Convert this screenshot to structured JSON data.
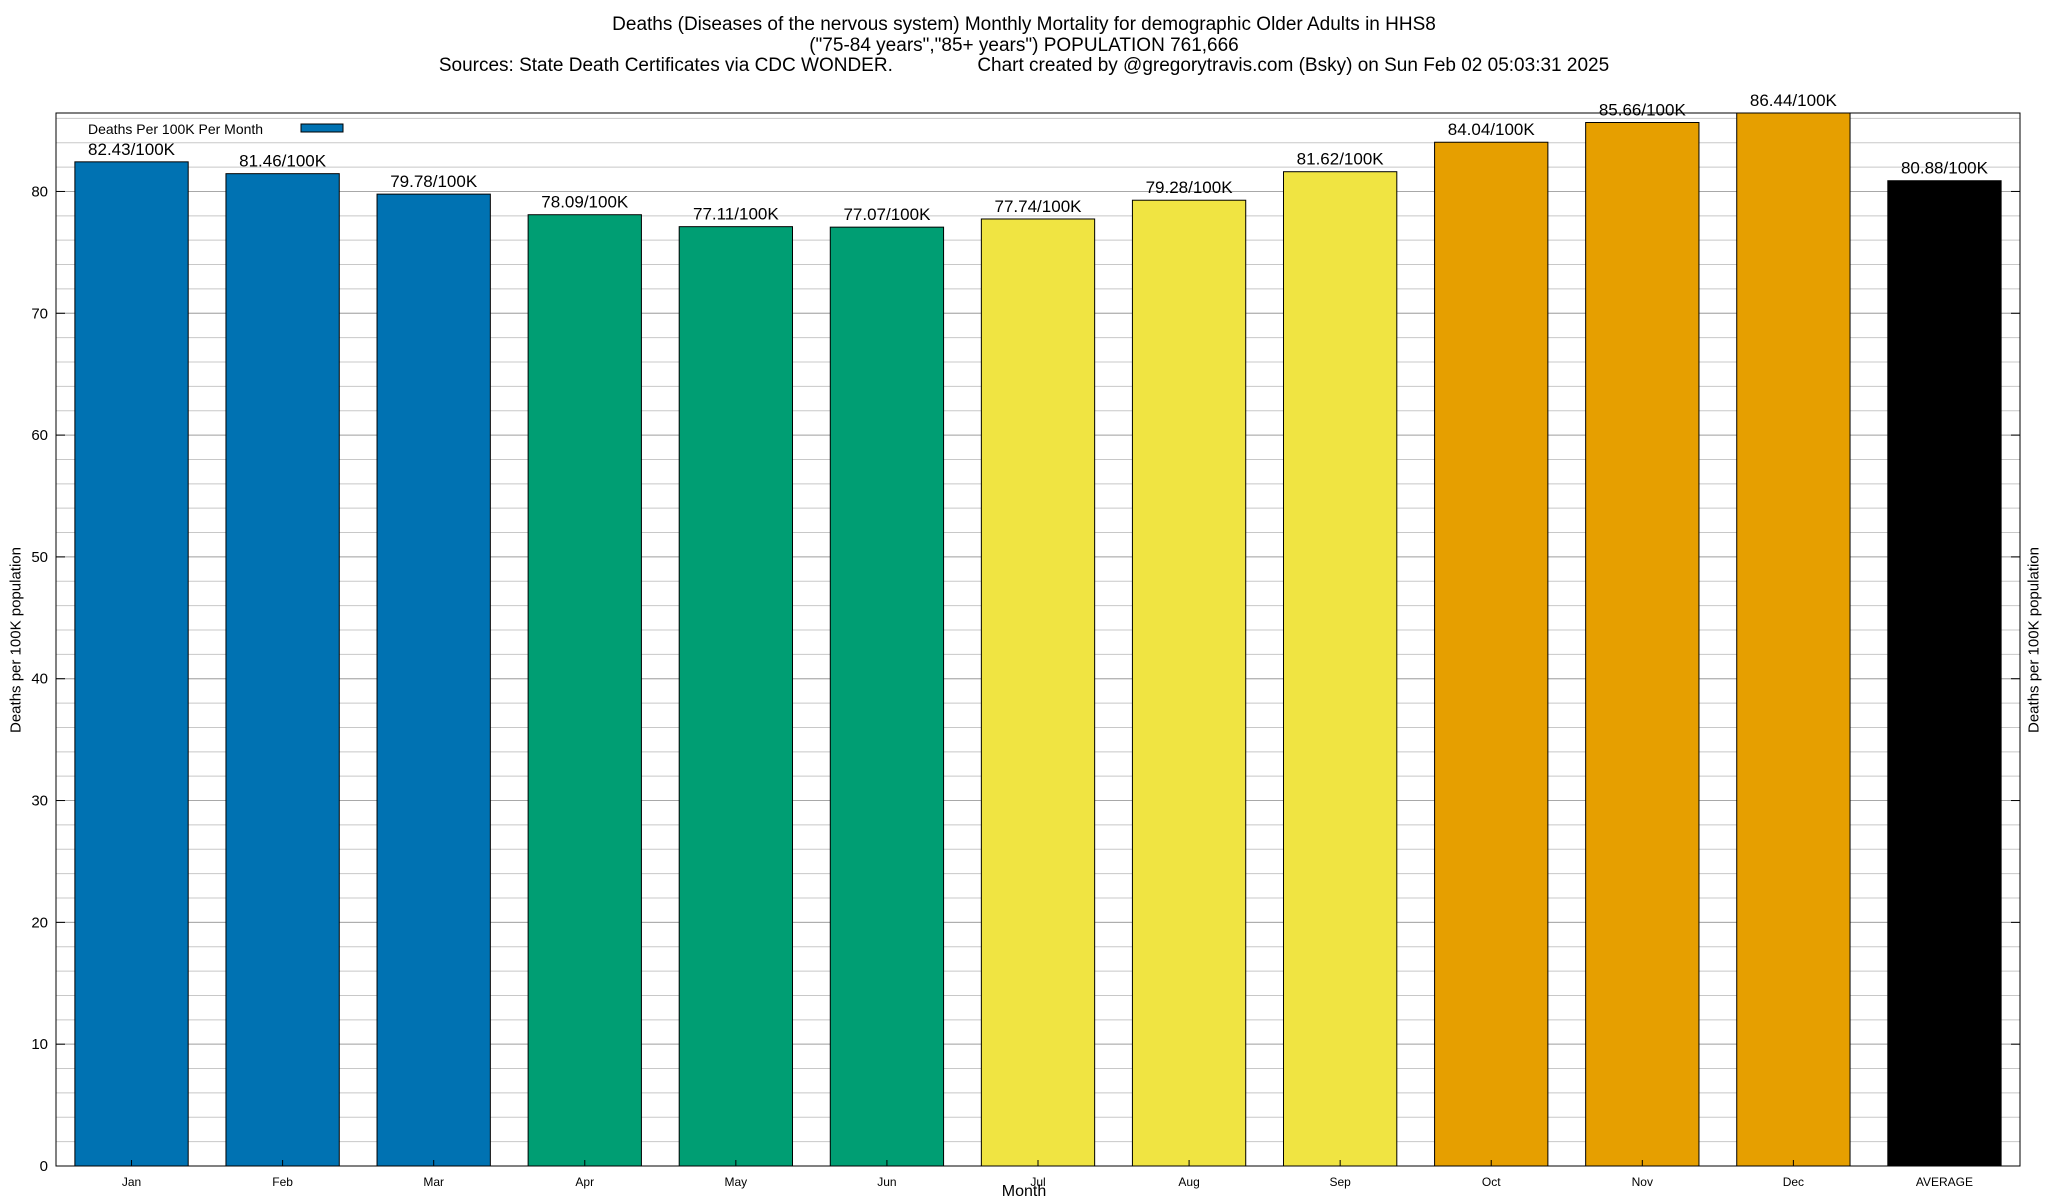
{
  "header": {
    "title_line1": "Deaths (Diseases of the nervous system) Monthly Mortality for demographic Older Adults in HHS8",
    "title_line2": "(\"75-84 years\",\"85+ years\") POPULATION 761,666",
    "title_line3": "Sources: State Death Certificates via CDC WONDER.                Chart created by @gregorytravis.com (Bsky) on Sun Feb 02 05:03:31 2025"
  },
  "legend": {
    "label": "Deaths Per 100K Per Month",
    "color": "#0072b2"
  },
  "chart_data": {
    "type": "bar",
    "categories": [
      "Jan",
      "Feb",
      "Mar",
      "Apr",
      "May",
      "Jun",
      "Jul",
      "Aug",
      "Sep",
      "Oct",
      "Nov",
      "Dec",
      "AVERAGE"
    ],
    "values": [
      82.43,
      81.46,
      79.78,
      78.09,
      77.11,
      77.07,
      77.74,
      79.28,
      81.62,
      84.04,
      85.66,
      86.44,
      80.88
    ],
    "data_labels": [
      "82.43/100K",
      "81.46/100K",
      "79.78/100K",
      "78.09/100K",
      "77.11/100K",
      "77.07/100K",
      "77.74/100K",
      "79.28/100K",
      "81.62/100K",
      "84.04/100K",
      "85.66/100K",
      "86.44/100K",
      "80.88/100K"
    ],
    "colors": [
      "#0072b2",
      "#0072b2",
      "#0072b2",
      "#009e73",
      "#009e73",
      "#009e73",
      "#f0e442",
      "#f0e442",
      "#f0e442",
      "#e69f00",
      "#e69f00",
      "#e69f00",
      "#000000"
    ],
    "xlabel": "Month",
    "ylabel": "Deaths per 100K population",
    "y2label": "Deaths per 100K population",
    "ylim": [
      0,
      86.44
    ],
    "yticks": [
      0,
      10,
      20,
      30,
      40,
      50,
      60,
      70,
      80
    ],
    "minor_grid_step": 2,
    "grid": true,
    "legend_position": "top-left"
  }
}
